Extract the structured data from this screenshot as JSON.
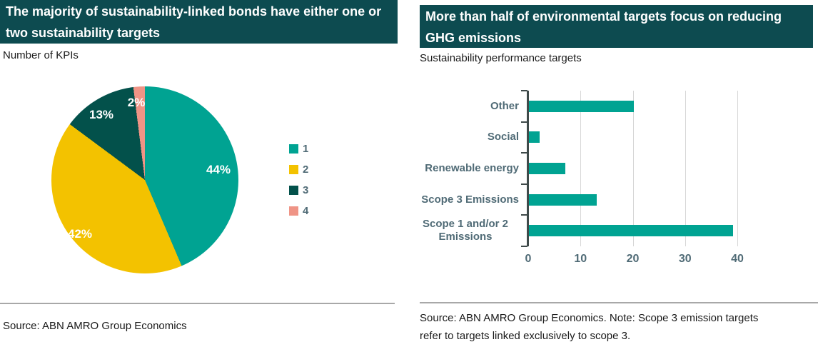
{
  "left_chart": {
    "title": "The majority of sustainability-linked bonds have either one or two sustainability targets",
    "subtitle": "Number of KPIs",
    "source": "Source: ABN AMRO Group Economics"
  },
  "right_chart": {
    "title": "More than half of environmental targets focus on reducing GHG emissions",
    "subtitle": "Sustainability performance targets",
    "source": "Source: ABN AMRO Group Economics. Note: Scope 3 emission targets refer to targets linked exclusively to scope 3."
  },
  "chart_data": [
    {
      "type": "pie",
      "title": "Number of KPIs",
      "labels": [
        "1",
        "2",
        "3",
        "4"
      ],
      "values": [
        44,
        42,
        13,
        2
      ],
      "value_labels": [
        "44%",
        "42%",
        "13%",
        "2%"
      ],
      "colors": [
        "#00A392",
        "#F3C200",
        "#03514B",
        "#EF9486"
      ],
      "legend_position": "right",
      "label_color": "#ffffff"
    },
    {
      "type": "bar",
      "orientation": "horizontal",
      "title": "Sustainability performance targets",
      "categories": [
        "Other",
        "Social",
        "Renewable energy",
        "Scope 3 Emissions",
        "Scope 1 and/or 2 Emissions"
      ],
      "values": [
        20,
        2,
        7,
        13,
        39
      ],
      "xlim": [
        0,
        40
      ],
      "xticks": [
        0,
        10,
        20,
        30,
        40
      ],
      "bar_color": "#00A392",
      "grid": "vertical-at-xticks",
      "ylabel": "",
      "xlabel": ""
    }
  ],
  "colors": {
    "header_bg": "#0D4B50",
    "teal": "#00A392",
    "yellow": "#F3C200",
    "dark_teal": "#03514B",
    "salmon": "#EF9486",
    "slate_label": "#506B76",
    "axis": "#3F4A4A",
    "grid": "#D6D6D6",
    "divider": "#A8A8A8",
    "text": "#1a1a1a"
  }
}
